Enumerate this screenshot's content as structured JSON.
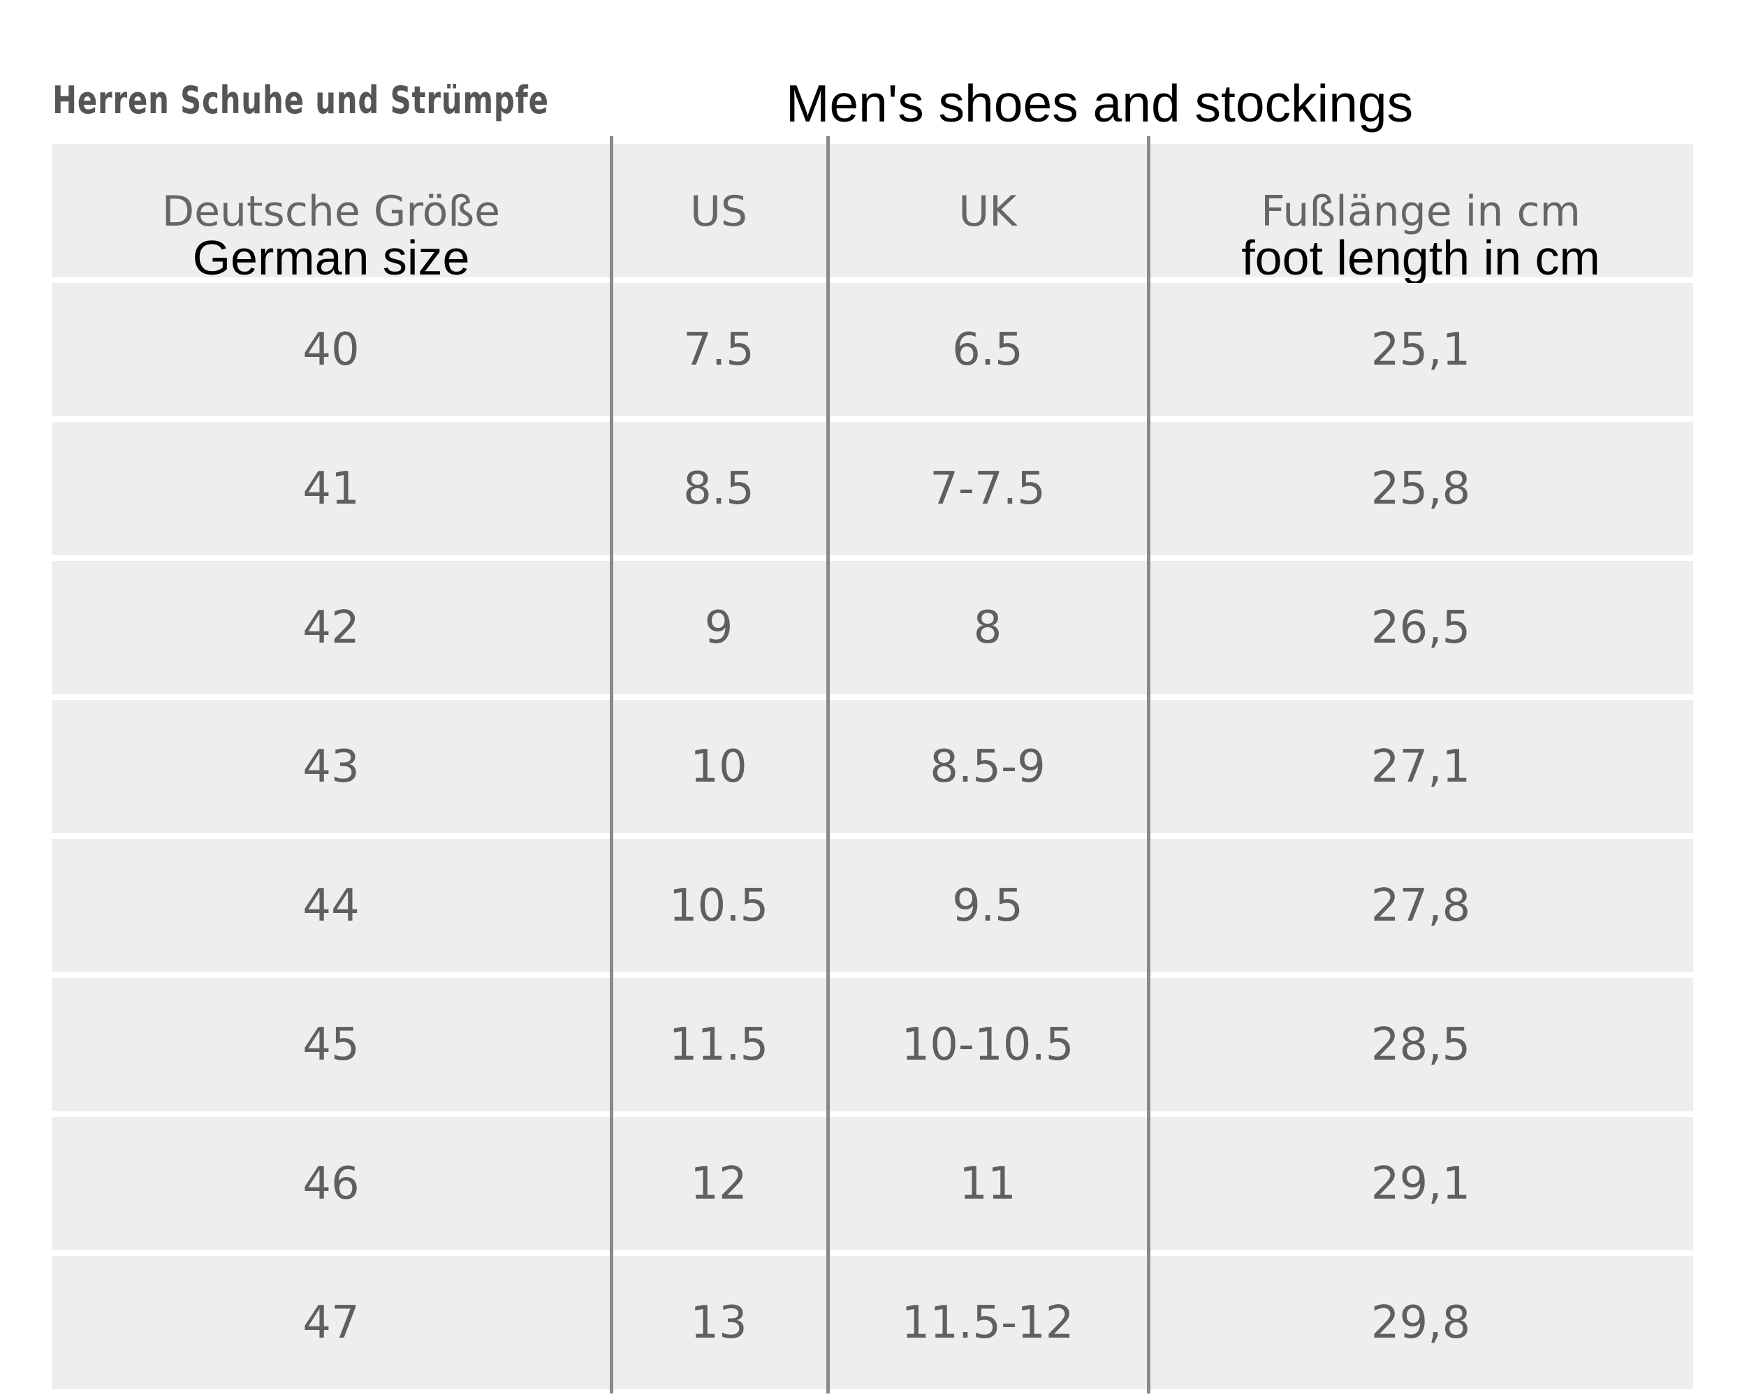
{
  "title_de": "Herren Schuhe und Strümpfe",
  "title_en": "Men's shoes and stockings",
  "header": [
    {
      "de": "Deutsche Größe",
      "en": "German size"
    },
    {
      "de": "US",
      "en": ""
    },
    {
      "de": "UK",
      "en": ""
    },
    {
      "de": "Fußlänge in cm",
      "en": "foot length in cm"
    }
  ],
  "rows": [
    [
      "40",
      "7.5",
      "6.5",
      "25,1"
    ],
    [
      "41",
      "8.5",
      "7-7.5",
      "25,8"
    ],
    [
      "42",
      "9",
      "8",
      "26,5"
    ],
    [
      "43",
      "10",
      "8.5-9",
      "27,1"
    ],
    [
      "44",
      "10.5",
      "9.5",
      "27,8"
    ],
    [
      "45",
      "11.5",
      "10-10.5",
      "28,5"
    ],
    [
      "46",
      "12",
      "11",
      "29,1"
    ],
    [
      "47",
      "13",
      "11.5-12",
      "29,8"
    ]
  ]
}
